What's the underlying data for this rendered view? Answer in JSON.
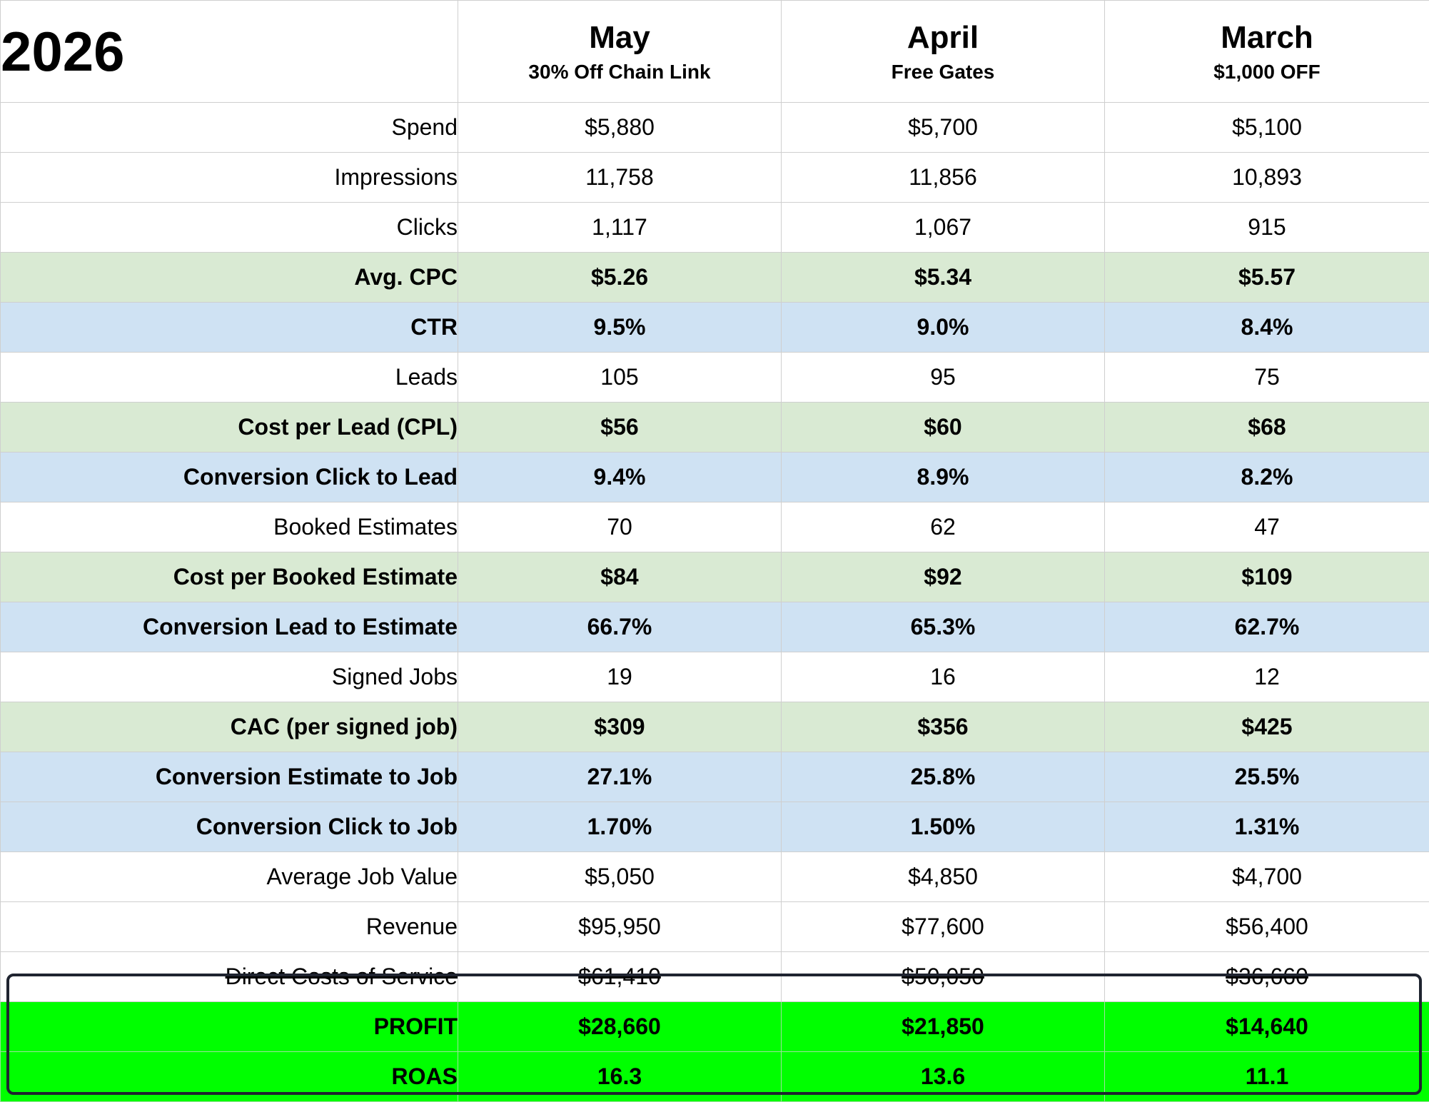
{
  "year": "2026",
  "months": [
    {
      "name": "May",
      "promo": "30% Off Chain Link"
    },
    {
      "name": "April",
      "promo": "Free Gates"
    },
    {
      "name": "March",
      "promo": "$1,000 OFF"
    }
  ],
  "rows": [
    {
      "label": "Spend",
      "values": [
        "$5,880",
        "$5,700",
        "$5,100"
      ]
    },
    {
      "label": "Impressions",
      "values": [
        "11,758",
        "11,856",
        "10,893"
      ]
    },
    {
      "label": "Clicks",
      "values": [
        "1,117",
        "1,067",
        "915"
      ]
    },
    {
      "label": "Avg. CPC",
      "values": [
        "$5.26",
        "$5.34",
        "$5.57"
      ]
    },
    {
      "label": "CTR",
      "values": [
        "9.5%",
        "9.0%",
        "8.4%"
      ]
    },
    {
      "label": "Leads",
      "values": [
        "105",
        "95",
        "75"
      ]
    },
    {
      "label": "Cost per Lead (CPL)",
      "values": [
        "$56",
        "$60",
        "$68"
      ]
    },
    {
      "label": "Conversion Click to Lead",
      "values": [
        "9.4%",
        "8.9%",
        "8.2%"
      ]
    },
    {
      "label": "Booked Estimates",
      "values": [
        "70",
        "62",
        "47"
      ]
    },
    {
      "label": "Cost per Booked Estimate",
      "values": [
        "$84",
        "$92",
        "$109"
      ]
    },
    {
      "label": "Conversion Lead to Estimate",
      "values": [
        "66.7%",
        "65.3%",
        "62.7%"
      ]
    },
    {
      "label": "Signed Jobs",
      "values": [
        "19",
        "16",
        "12"
      ]
    },
    {
      "label": "CAC (per signed job)",
      "values": [
        "$309",
        "$356",
        "$425"
      ]
    },
    {
      "label": "Conversion Estimate to Job",
      "values": [
        "27.1%",
        "25.8%",
        "25.5%"
      ]
    },
    {
      "label": "Conversion Click to Job",
      "values": [
        "1.70%",
        "1.50%",
        "1.31%"
      ]
    },
    {
      "label": "Average Job Value",
      "values": [
        "$5,050",
        "$4,850",
        "$4,700"
      ]
    },
    {
      "label": "Revenue",
      "values": [
        "$95,950",
        "$77,600",
        "$56,400"
      ]
    },
    {
      "label": "Direct Costs of Service",
      "values": [
        "$61,410",
        "$50,050",
        "$36,660"
      ]
    },
    {
      "label": "PROFIT",
      "values": [
        "$28,660",
        "$21,850",
        "$14,640"
      ]
    },
    {
      "label": "ROAS",
      "values": [
        "16.3",
        "13.6",
        "11.1"
      ]
    }
  ],
  "colors": {
    "green_row": "#d9ead3",
    "blue_row": "#cfe2f3",
    "profit_row": "#00ff00",
    "highlight_border": "#1f2430"
  }
}
